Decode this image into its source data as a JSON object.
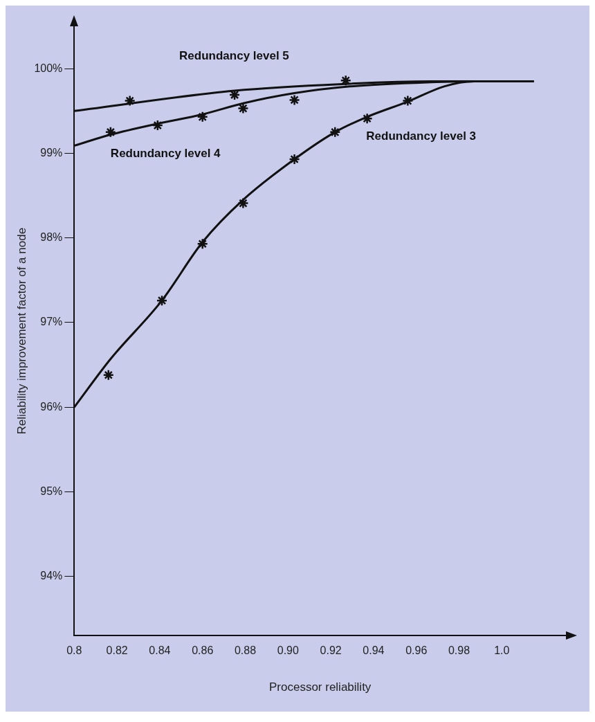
{
  "chart_data": {
    "type": "line",
    "xlabel": "Processor reliability",
    "ylabel": "Reliability improvement factor of a node",
    "xlim": [
      0.8,
      1.03
    ],
    "ylim": [
      93.3,
      100.5
    ],
    "xticks": [
      {
        "value": 0.8,
        "label": "0.8"
      },
      {
        "value": 0.82,
        "label": "0.82"
      },
      {
        "value": 0.84,
        "label": "0.84"
      },
      {
        "value": 0.86,
        "label": "0.86"
      },
      {
        "value": 0.88,
        "label": "0.88"
      },
      {
        "value": 0.9,
        "label": "0.90"
      },
      {
        "value": 0.92,
        "label": "0.92"
      },
      {
        "value": 0.94,
        "label": "0.94"
      },
      {
        "value": 0.96,
        "label": "0.96"
      },
      {
        "value": 0.98,
        "label": "0.98"
      },
      {
        "value": 1,
        "label": "1.0"
      }
    ],
    "yticks": [
      {
        "value": 94,
        "label": "94%"
      },
      {
        "value": 95,
        "label": "95%"
      },
      {
        "value": 96,
        "label": "96%"
      },
      {
        "value": 97,
        "label": "97%"
      },
      {
        "value": 98,
        "label": "98%"
      },
      {
        "value": 99,
        "label": "99%"
      },
      {
        "value": 100,
        "label": "100%"
      }
    ],
    "grid": false,
    "legend": false,
    "marker": "none",
    "line_style": "solid",
    "series": [
      {
        "name": "Redundancy level 5",
        "color": "#111111",
        "x": [
          0.8,
          0.875,
          0.927,
          0.967,
          1.015
        ],
        "values": [
          99.5,
          99.74,
          99.82,
          99.85,
          99.85
        ]
      },
      {
        "name": "Redundancy level 4",
        "color": "#111111",
        "x": [
          0.8,
          0.817,
          0.839,
          0.86,
          0.879,
          0.903,
          0.929,
          0.967,
          0.987
        ],
        "values": [
          99.09,
          99.22,
          99.35,
          99.46,
          99.59,
          99.71,
          99.79,
          99.84,
          99.85
        ]
      },
      {
        "name": "Redundancy level 3",
        "color": "#111111",
        "x": [
          0.8,
          0.817,
          0.841,
          0.86,
          0.879,
          0.903,
          0.922,
          0.937,
          0.956,
          0.973,
          0.987,
          1.015
        ],
        "values": [
          96.0,
          96.57,
          97.26,
          97.95,
          98.45,
          98.93,
          99.25,
          99.43,
          99.61,
          99.79,
          99.85,
          99.85
        ]
      },
      {
        "type": "scatter",
        "marker": "cross",
        "color": "#111111",
        "x": [
          0.826,
          0.875,
          0.927
        ],
        "values": [
          99.62,
          99.69,
          99.86
        ]
      },
      {
        "type": "scatter",
        "marker": "cross",
        "color": "#111111",
        "x": [
          0.817,
          0.839,
          0.86,
          0.879,
          0.903
        ],
        "values": [
          99.25,
          99.33,
          99.43,
          99.53,
          99.63
        ]
      },
      {
        "type": "scatter",
        "marker": "cross",
        "color": "#111111",
        "x": [
          0.816,
          0.841,
          0.86,
          0.879,
          0.903,
          0.922,
          0.937,
          0.956
        ],
        "values": [
          96.38,
          97.26,
          97.93,
          98.41,
          98.93,
          99.25,
          99.41,
          99.62
        ]
      }
    ]
  }
}
